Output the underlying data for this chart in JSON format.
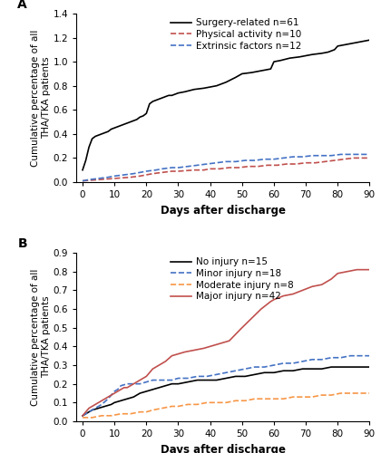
{
  "panel_A": {
    "title": "A",
    "ylabel": "Cumulative percentage of all\nTHA/TKA patients",
    "xlabel": "Days after discharge",
    "ylim": [
      0,
      1.4
    ],
    "yticks": [
      0.0,
      0.2,
      0.4,
      0.6,
      0.8,
      1.0,
      1.2,
      1.4
    ],
    "xlim": [
      -2,
      90
    ],
    "xticks": [
      0,
      10,
      20,
      30,
      40,
      50,
      60,
      70,
      80,
      90
    ],
    "series": [
      {
        "label": "Surgery-related n=61",
        "color": "#000000",
        "linestyle": "solid",
        "linewidth": 1.2,
        "x": [
          0,
          1,
          2,
          3,
          4,
          5,
          6,
          7,
          8,
          9,
          10,
          11,
          12,
          13,
          14,
          15,
          16,
          17,
          18,
          19,
          20,
          21,
          22,
          23,
          24,
          25,
          26,
          27,
          28,
          30,
          32,
          35,
          38,
          40,
          42,
          45,
          48,
          50,
          53,
          55,
          57,
          59,
          60,
          62,
          65,
          68,
          70,
          72,
          75,
          77,
          79,
          80,
          82,
          84,
          86,
          88,
          90
        ],
        "y": [
          0.1,
          0.18,
          0.29,
          0.36,
          0.38,
          0.39,
          0.4,
          0.41,
          0.42,
          0.44,
          0.45,
          0.46,
          0.47,
          0.48,
          0.49,
          0.5,
          0.51,
          0.52,
          0.54,
          0.55,
          0.57,
          0.65,
          0.67,
          0.68,
          0.69,
          0.7,
          0.71,
          0.72,
          0.72,
          0.74,
          0.75,
          0.77,
          0.78,
          0.79,
          0.8,
          0.83,
          0.87,
          0.9,
          0.91,
          0.92,
          0.93,
          0.94,
          1.0,
          1.01,
          1.03,
          1.04,
          1.05,
          1.06,
          1.07,
          1.08,
          1.1,
          1.13,
          1.14,
          1.15,
          1.16,
          1.17,
          1.18
        ]
      },
      {
        "label": "Physical activity n=10",
        "color": "#c0504d",
        "linestyle": "dashed",
        "linewidth": 1.2,
        "x": [
          0,
          5,
          10,
          15,
          18,
          20,
          22,
          25,
          28,
          30,
          35,
          38,
          40,
          43,
          46,
          49,
          52,
          55,
          58,
          61,
          64,
          67,
          70,
          73,
          76,
          79,
          82,
          85,
          88,
          90
        ],
        "y": [
          0.01,
          0.02,
          0.03,
          0.04,
          0.05,
          0.06,
          0.07,
          0.08,
          0.09,
          0.09,
          0.1,
          0.1,
          0.11,
          0.11,
          0.12,
          0.12,
          0.13,
          0.13,
          0.14,
          0.14,
          0.15,
          0.15,
          0.16,
          0.16,
          0.17,
          0.18,
          0.19,
          0.2,
          0.2,
          0.2
        ]
      },
      {
        "label": "Extrinsic factors n=12",
        "color": "#4472c4",
        "linestyle": "dashed",
        "linewidth": 1.2,
        "x": [
          0,
          2,
          5,
          8,
          10,
          13,
          16,
          18,
          20,
          23,
          25,
          28,
          30,
          33,
          36,
          39,
          42,
          45,
          48,
          51,
          54,
          57,
          60,
          63,
          66,
          69,
          72,
          75,
          78,
          81,
          84,
          87,
          90
        ],
        "y": [
          0.01,
          0.02,
          0.03,
          0.04,
          0.05,
          0.06,
          0.07,
          0.08,
          0.09,
          0.1,
          0.11,
          0.12,
          0.12,
          0.13,
          0.14,
          0.15,
          0.16,
          0.17,
          0.17,
          0.18,
          0.18,
          0.19,
          0.19,
          0.2,
          0.21,
          0.21,
          0.22,
          0.22,
          0.22,
          0.23,
          0.23,
          0.23,
          0.23
        ]
      }
    ]
  },
  "panel_B": {
    "title": "B",
    "ylabel": "Cumulative percentage of all\nTHA/TKA patients",
    "xlabel": "Days after discharge",
    "ylim": [
      0,
      0.9
    ],
    "yticks": [
      0.0,
      0.1,
      0.2,
      0.3,
      0.4,
      0.5,
      0.6,
      0.7,
      0.8,
      0.9
    ],
    "xlim": [
      -2,
      90
    ],
    "xticks": [
      0,
      10,
      20,
      30,
      40,
      50,
      60,
      70,
      80,
      90
    ],
    "series": [
      {
        "label": "No injury n=15",
        "color": "#000000",
        "linestyle": "solid",
        "linewidth": 1.2,
        "x": [
          0,
          1,
          2,
          3,
          5,
          7,
          9,
          10,
          12,
          14,
          16,
          18,
          20,
          22,
          24,
          26,
          28,
          30,
          33,
          36,
          39,
          42,
          45,
          48,
          51,
          54,
          57,
          60,
          63,
          66,
          69,
          72,
          75,
          78,
          81,
          84,
          87,
          90
        ],
        "y": [
          0.03,
          0.04,
          0.05,
          0.06,
          0.07,
          0.08,
          0.09,
          0.1,
          0.11,
          0.12,
          0.13,
          0.15,
          0.16,
          0.17,
          0.18,
          0.19,
          0.2,
          0.2,
          0.21,
          0.22,
          0.22,
          0.22,
          0.23,
          0.24,
          0.24,
          0.25,
          0.26,
          0.26,
          0.27,
          0.27,
          0.28,
          0.28,
          0.28,
          0.29,
          0.29,
          0.29,
          0.29,
          0.29
        ]
      },
      {
        "label": "Minor injury n=18",
        "color": "#4472c4",
        "linestyle": "dashed",
        "linewidth": 1.2,
        "x": [
          0,
          2,
          4,
          6,
          8,
          9,
          10,
          11,
          12,
          14,
          16,
          18,
          20,
          22,
          24,
          26,
          28,
          30,
          33,
          36,
          39,
          42,
          45,
          48,
          51,
          54,
          57,
          60,
          63,
          66,
          69,
          72,
          75,
          78,
          81,
          84,
          87,
          90
        ],
        "y": [
          0.03,
          0.05,
          0.07,
          0.09,
          0.12,
          0.14,
          0.16,
          0.17,
          0.19,
          0.2,
          0.2,
          0.2,
          0.21,
          0.22,
          0.22,
          0.22,
          0.22,
          0.23,
          0.23,
          0.24,
          0.24,
          0.25,
          0.26,
          0.27,
          0.28,
          0.29,
          0.29,
          0.3,
          0.31,
          0.31,
          0.32,
          0.33,
          0.33,
          0.34,
          0.34,
          0.35,
          0.35,
          0.35
        ]
      },
      {
        "label": "Moderate injury n=8",
        "color": "#f79646",
        "linestyle": "dashed",
        "linewidth": 1.2,
        "x": [
          0,
          3,
          6,
          9,
          12,
          15,
          18,
          20,
          22,
          25,
          28,
          30,
          33,
          36,
          39,
          42,
          45,
          48,
          51,
          54,
          57,
          60,
          63,
          66,
          69,
          72,
          75,
          78,
          81,
          84,
          87,
          90
        ],
        "y": [
          0.02,
          0.02,
          0.03,
          0.03,
          0.04,
          0.04,
          0.05,
          0.05,
          0.06,
          0.07,
          0.08,
          0.08,
          0.09,
          0.09,
          0.1,
          0.1,
          0.1,
          0.11,
          0.11,
          0.12,
          0.12,
          0.12,
          0.12,
          0.13,
          0.13,
          0.13,
          0.14,
          0.14,
          0.15,
          0.15,
          0.15,
          0.15
        ]
      },
      {
        "label": "Major injury n=42",
        "color": "#c0504d",
        "linestyle": "solid",
        "linewidth": 1.2,
        "x": [
          0,
          1,
          2,
          3,
          4,
          5,
          6,
          7,
          8,
          9,
          10,
          11,
          12,
          13,
          14,
          15,
          16,
          17,
          18,
          19,
          20,
          21,
          22,
          24,
          26,
          28,
          30,
          32,
          35,
          38,
          40,
          42,
          44,
          46,
          50,
          53,
          56,
          59,
          60,
          63,
          66,
          69,
          72,
          75,
          78,
          80,
          83,
          86,
          89,
          90
        ],
        "y": [
          0.03,
          0.05,
          0.07,
          0.08,
          0.09,
          0.1,
          0.11,
          0.12,
          0.13,
          0.14,
          0.15,
          0.16,
          0.17,
          0.18,
          0.18,
          0.19,
          0.2,
          0.21,
          0.22,
          0.23,
          0.24,
          0.26,
          0.28,
          0.3,
          0.32,
          0.35,
          0.36,
          0.37,
          0.38,
          0.39,
          0.4,
          0.41,
          0.42,
          0.43,
          0.5,
          0.55,
          0.6,
          0.64,
          0.65,
          0.67,
          0.68,
          0.7,
          0.72,
          0.73,
          0.76,
          0.79,
          0.8,
          0.81,
          0.81,
          0.81
        ]
      }
    ]
  },
  "fig_bgcolor": "#ffffff",
  "legend_fontsize": 7.5,
  "axis_label_fontsize": 8.5,
  "ylabel_fontsize": 7.5,
  "tick_fontsize": 7.5,
  "title_fontsize": 10,
  "title_fontweight": "bold"
}
